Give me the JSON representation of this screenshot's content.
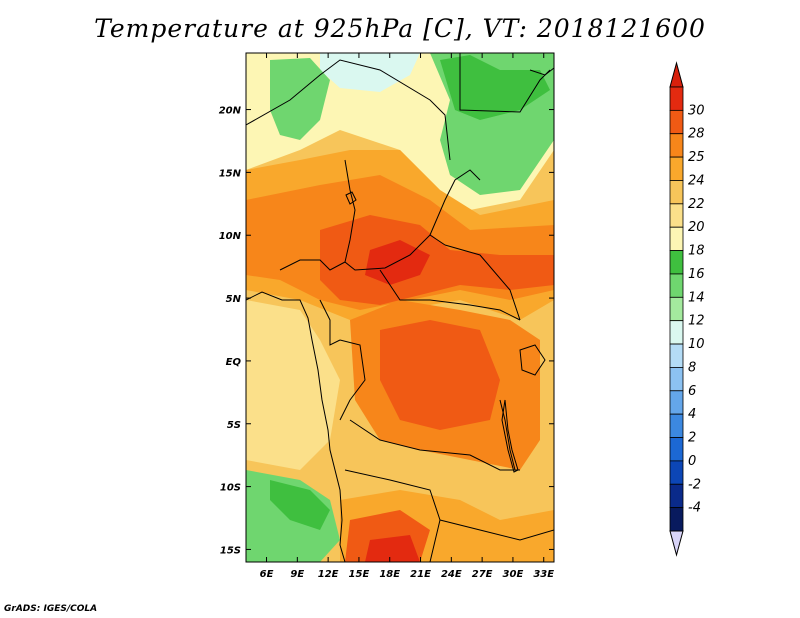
{
  "title": "Temperature at 925hPa [C], VT: 2018121600",
  "credit": "GrADS: IGES/COLA",
  "map": {
    "lon_range": [
      4,
      34
    ],
    "lat_range": [
      -16,
      24.5
    ],
    "lon_ticks": [
      "6E",
      "9E",
      "12E",
      "15E",
      "18E",
      "21E",
      "24E",
      "27E",
      "30E",
      "33E"
    ],
    "lon_tick_values": [
      6,
      9,
      12,
      15,
      18,
      21,
      24,
      27,
      30,
      33
    ],
    "lat_ticks": [
      "20N",
      "15N",
      "10N",
      "5N",
      "EQ",
      "5S",
      "10S",
      "15S"
    ],
    "lat_tick_values": [
      20,
      15,
      10,
      5,
      0,
      -5,
      -10,
      -15
    ]
  },
  "colorbar": {
    "levels": [
      "30",
      "28",
      "25",
      "24",
      "22",
      "20",
      "18",
      "16",
      "14",
      "12",
      "10",
      "8",
      "6",
      "4",
      "2",
      "0",
      "-2",
      "-4"
    ],
    "colors": [
      "#e32a10",
      "#f05a14",
      "#f7861a",
      "#f9a82c",
      "#f7c55a",
      "#fbe08a",
      "#fdf6b4",
      "#3fbf3f",
      "#6fd66f",
      "#a4ea9e",
      "#daf8f0",
      "#b4dcf6",
      "#8cc2f2",
      "#64a6ea",
      "#3c88e0",
      "#1c68d4",
      "#0c46b6",
      "#0a2a8a",
      "#081a5e"
    ],
    "top_arrow_color": "#d8200c",
    "bottom_arrow_color": "#d8d4f8"
  }
}
